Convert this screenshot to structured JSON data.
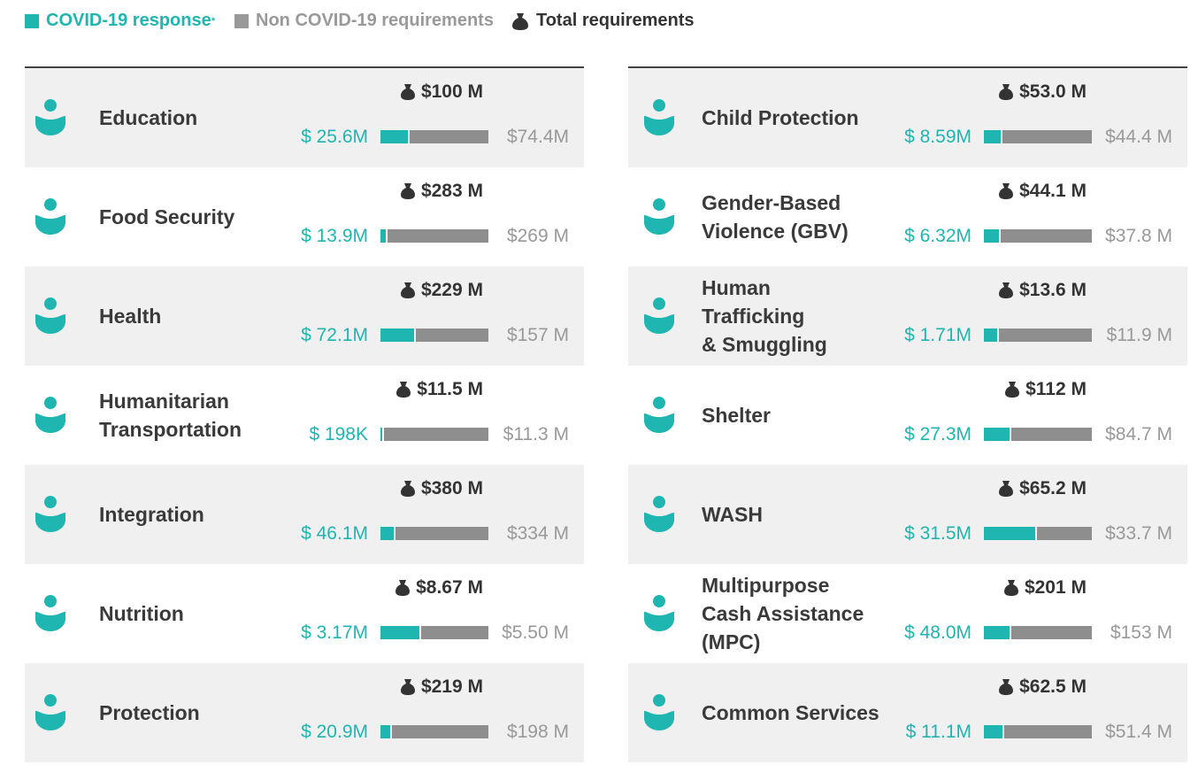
{
  "legend": {
    "covid": "COVID-19 response",
    "covid_note": "*",
    "non_covid": "Non COVID-19 requirements",
    "total": "Total requirements"
  },
  "sectors": [
    {
      "name": [
        "Education"
      ],
      "total": 100,
      "total_label": "$100 M",
      "covid": 25.6,
      "covid_label": "$ 25.6M",
      "non_covid": 74.4,
      "non_covid_label": "$74.4M"
    },
    {
      "name": [
        "Food Security"
      ],
      "total": 283,
      "total_label": "$283 M",
      "covid": 13.9,
      "covid_label": "$ 13.9M",
      "non_covid": 269,
      "non_covid_label": "$269 M"
    },
    {
      "name": [
        "Health"
      ],
      "total": 229,
      "total_label": "$229 M",
      "covid": 72.1,
      "covid_label": "$ 72.1M",
      "non_covid": 157,
      "non_covid_label": "$157 M"
    },
    {
      "name": [
        "Humanitarian",
        "Transportation"
      ],
      "total": 11.5,
      "total_label": "$11.5 M",
      "covid": 0.198,
      "covid_label": "$ 198K",
      "non_covid": 11.3,
      "non_covid_label": "$11.3 M"
    },
    {
      "name": [
        "Integration"
      ],
      "total": 380,
      "total_label": "$380 M",
      "covid": 46.1,
      "covid_label": "$ 46.1M",
      "non_covid": 334,
      "non_covid_label": "$334 M"
    },
    {
      "name": [
        "Nutrition"
      ],
      "total": 8.67,
      "total_label": "$8.67 M",
      "covid": 3.17,
      "covid_label": "$ 3.17M",
      "non_covid": 5.5,
      "non_covid_label": "$5.50 M"
    },
    {
      "name": [
        "Protection"
      ],
      "total": 219,
      "total_label": "$219 M",
      "covid": 20.9,
      "covid_label": "$ 20.9M",
      "non_covid": 198,
      "non_covid_label": "$198 M"
    },
    {
      "name": [
        "Child Protection"
      ],
      "total": 53.0,
      "total_label": "$53.0 M",
      "covid": 8.59,
      "covid_label": "$ 8.59M",
      "non_covid": 44.4,
      "non_covid_label": "$44.4 M"
    },
    {
      "name": [
        "Gender-Based",
        "Violence (GBV)"
      ],
      "total": 44.1,
      "total_label": "$44.1 M",
      "covid": 6.32,
      "covid_label": "$ 6.32M",
      "non_covid": 37.8,
      "non_covid_label": "$37.8 M"
    },
    {
      "name": [
        "Human",
        "Trafficking",
        "& Smuggling"
      ],
      "total": 13.6,
      "total_label": "$13.6 M",
      "covid": 1.71,
      "covid_label": "$ 1.71M",
      "non_covid": 11.9,
      "non_covid_label": "$11.9 M"
    },
    {
      "name": [
        "Shelter"
      ],
      "total": 112,
      "total_label": "$112 M",
      "covid": 27.3,
      "covid_label": "$ 27.3M",
      "non_covid": 84.7,
      "non_covid_label": "$84.7 M"
    },
    {
      "name": [
        "WASH"
      ],
      "total": 65.2,
      "total_label": "$65.2 M",
      "covid": 31.5,
      "covid_label": "$ 31.5M",
      "non_covid": 33.7,
      "non_covid_label": "$33.7 M"
    },
    {
      "name": [
        "Multipurpose",
        "Cash Assistance",
        "(MPC)"
      ],
      "total": 201,
      "total_label": "$201 M",
      "covid": 48.0,
      "covid_label": "$ 48.0M",
      "non_covid": 153,
      "non_covid_label": "$153 M"
    },
    {
      "name": [
        "Common Services"
      ],
      "total": 62.5,
      "total_label": "$62.5 M",
      "covid": 11.1,
      "covid_label": "$ 11.1M",
      "non_covid": 51.4,
      "non_covid_label": "$51.4 M"
    }
  ]
}
